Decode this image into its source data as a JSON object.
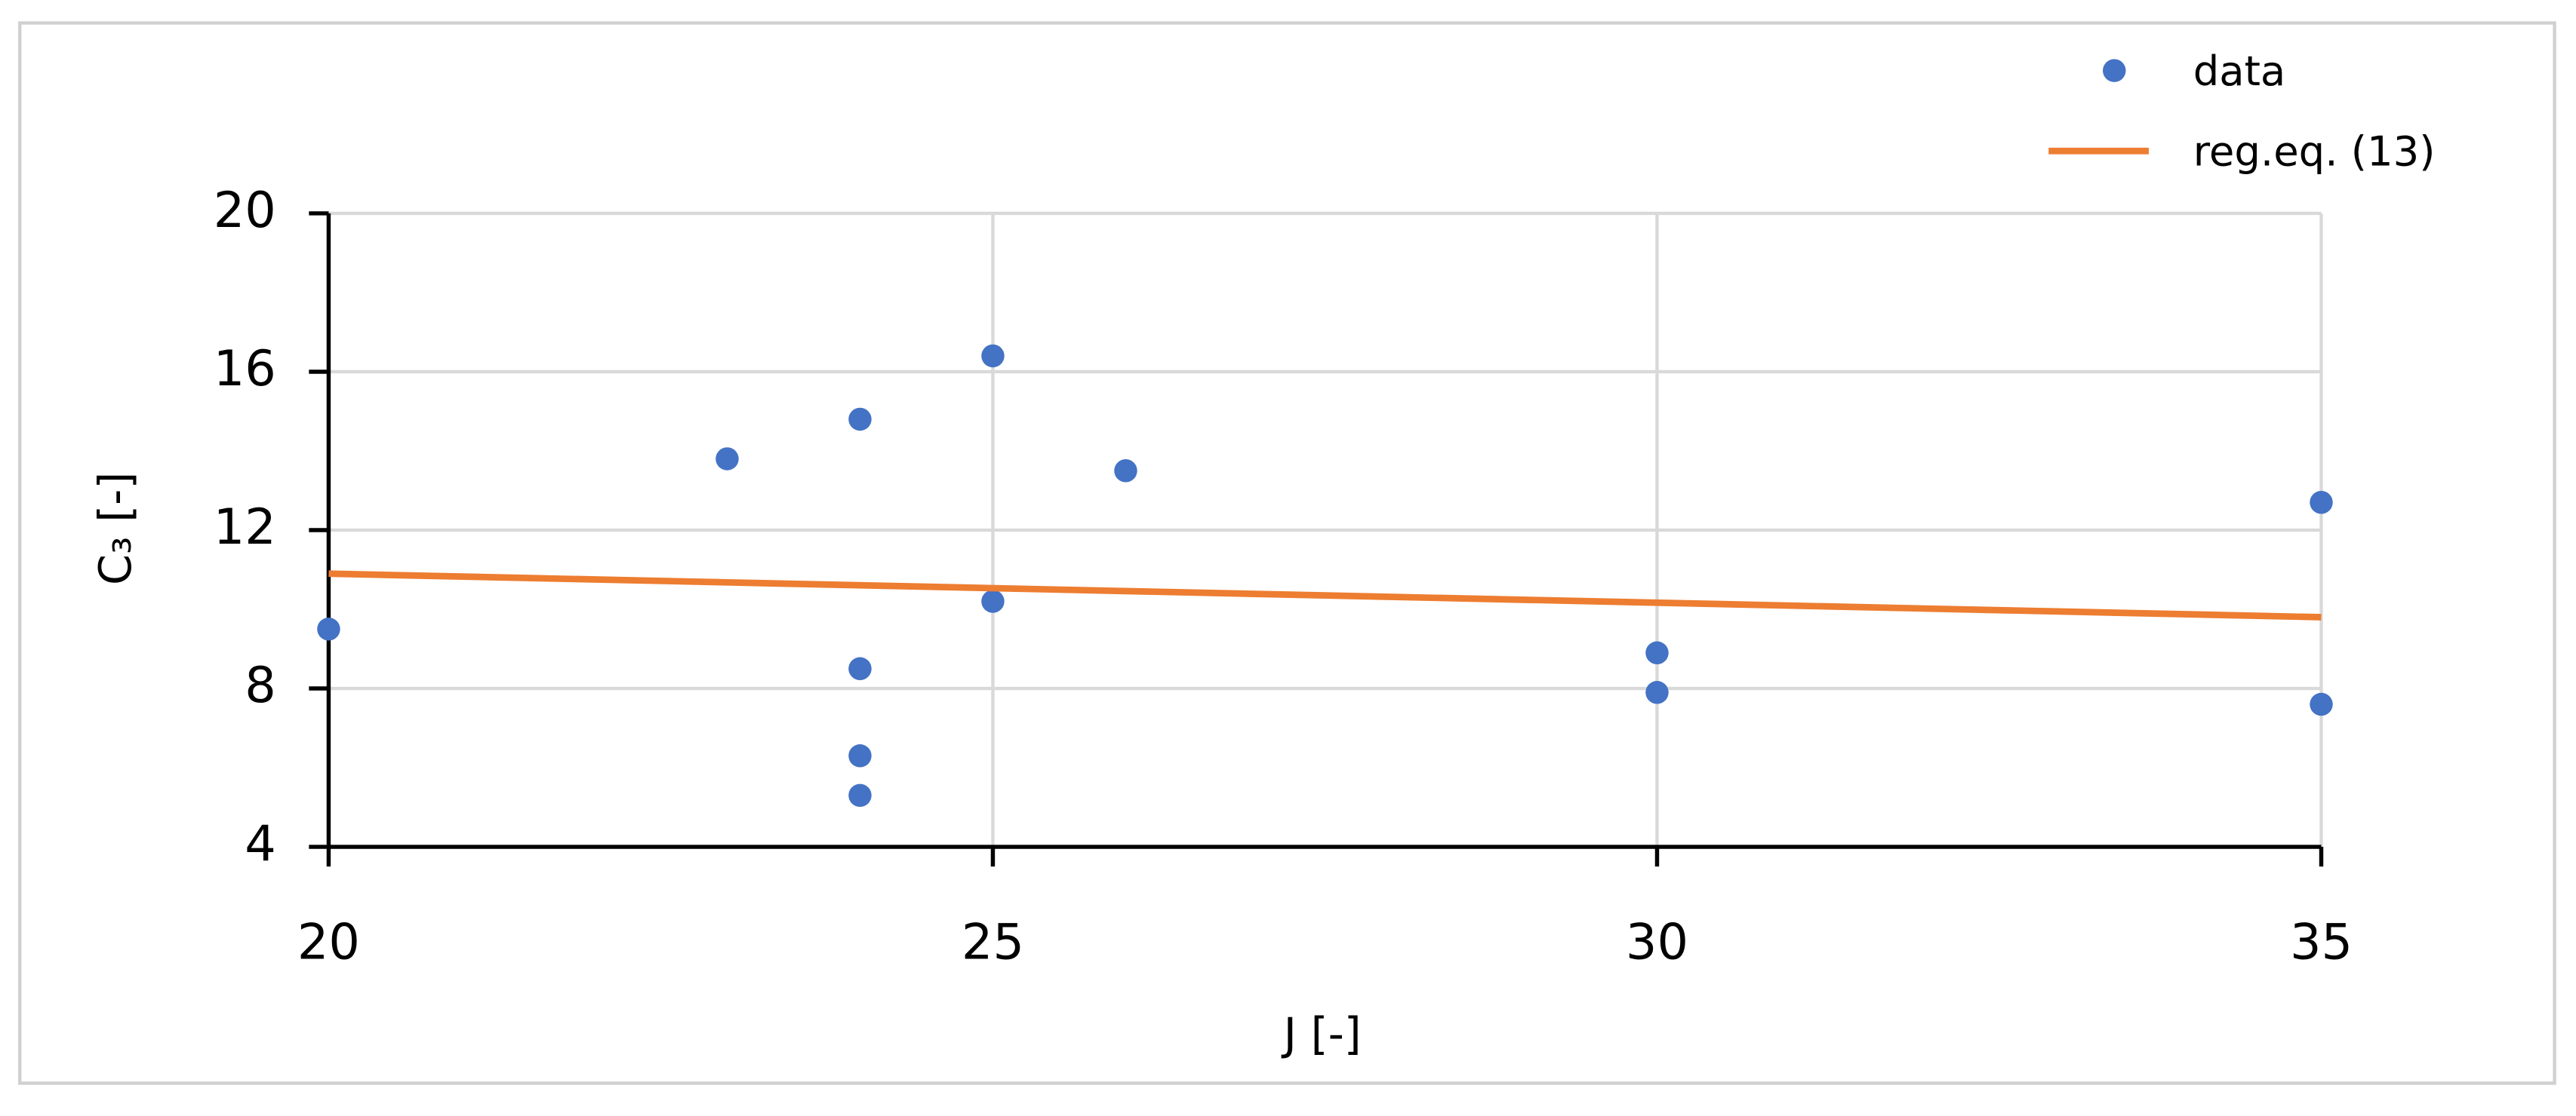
{
  "chart_data": {
    "type": "scatter",
    "xlabel": "J [-]",
    "ylabel": "C₃ [-]",
    "xlim": [
      20,
      35
    ],
    "xticks": [
      20,
      25,
      30,
      35
    ],
    "ylim": [
      4,
      20
    ],
    "yticks": [
      4,
      8,
      12,
      16,
      20
    ],
    "grid": true,
    "legend": "upper right",
    "series": [
      {
        "name": "data",
        "type": "scatter",
        "color": "#4472c4",
        "x": [
          20,
          23,
          24,
          24,
          24,
          24,
          25,
          25,
          26,
          30,
          30,
          35,
          35
        ],
        "values": [
          9.5,
          13.8,
          14.8,
          8.5,
          6.3,
          5.3,
          16.4,
          10.2,
          13.5,
          8.9,
          7.9,
          12.7,
          7.6
        ]
      },
      {
        "name": "reg.eq. (13)",
        "type": "line",
        "color": "#ed7d31",
        "x": [
          20,
          35
        ],
        "values": [
          10.9,
          9.8
        ]
      }
    ]
  }
}
